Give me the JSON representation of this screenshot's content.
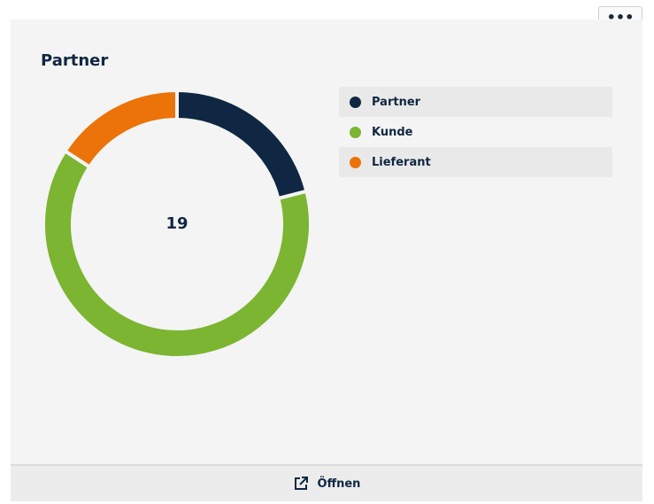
{
  "chart_data": {
    "type": "donut",
    "title": "Partner",
    "total": 19,
    "categories": [
      "Partner",
      "Kunde",
      "Lieferant"
    ],
    "values": [
      4,
      12,
      3
    ],
    "colors": [
      "#0f2742",
      "#7cb531",
      "#eb7309"
    ]
  },
  "footer": {
    "button": "Öffnen"
  }
}
